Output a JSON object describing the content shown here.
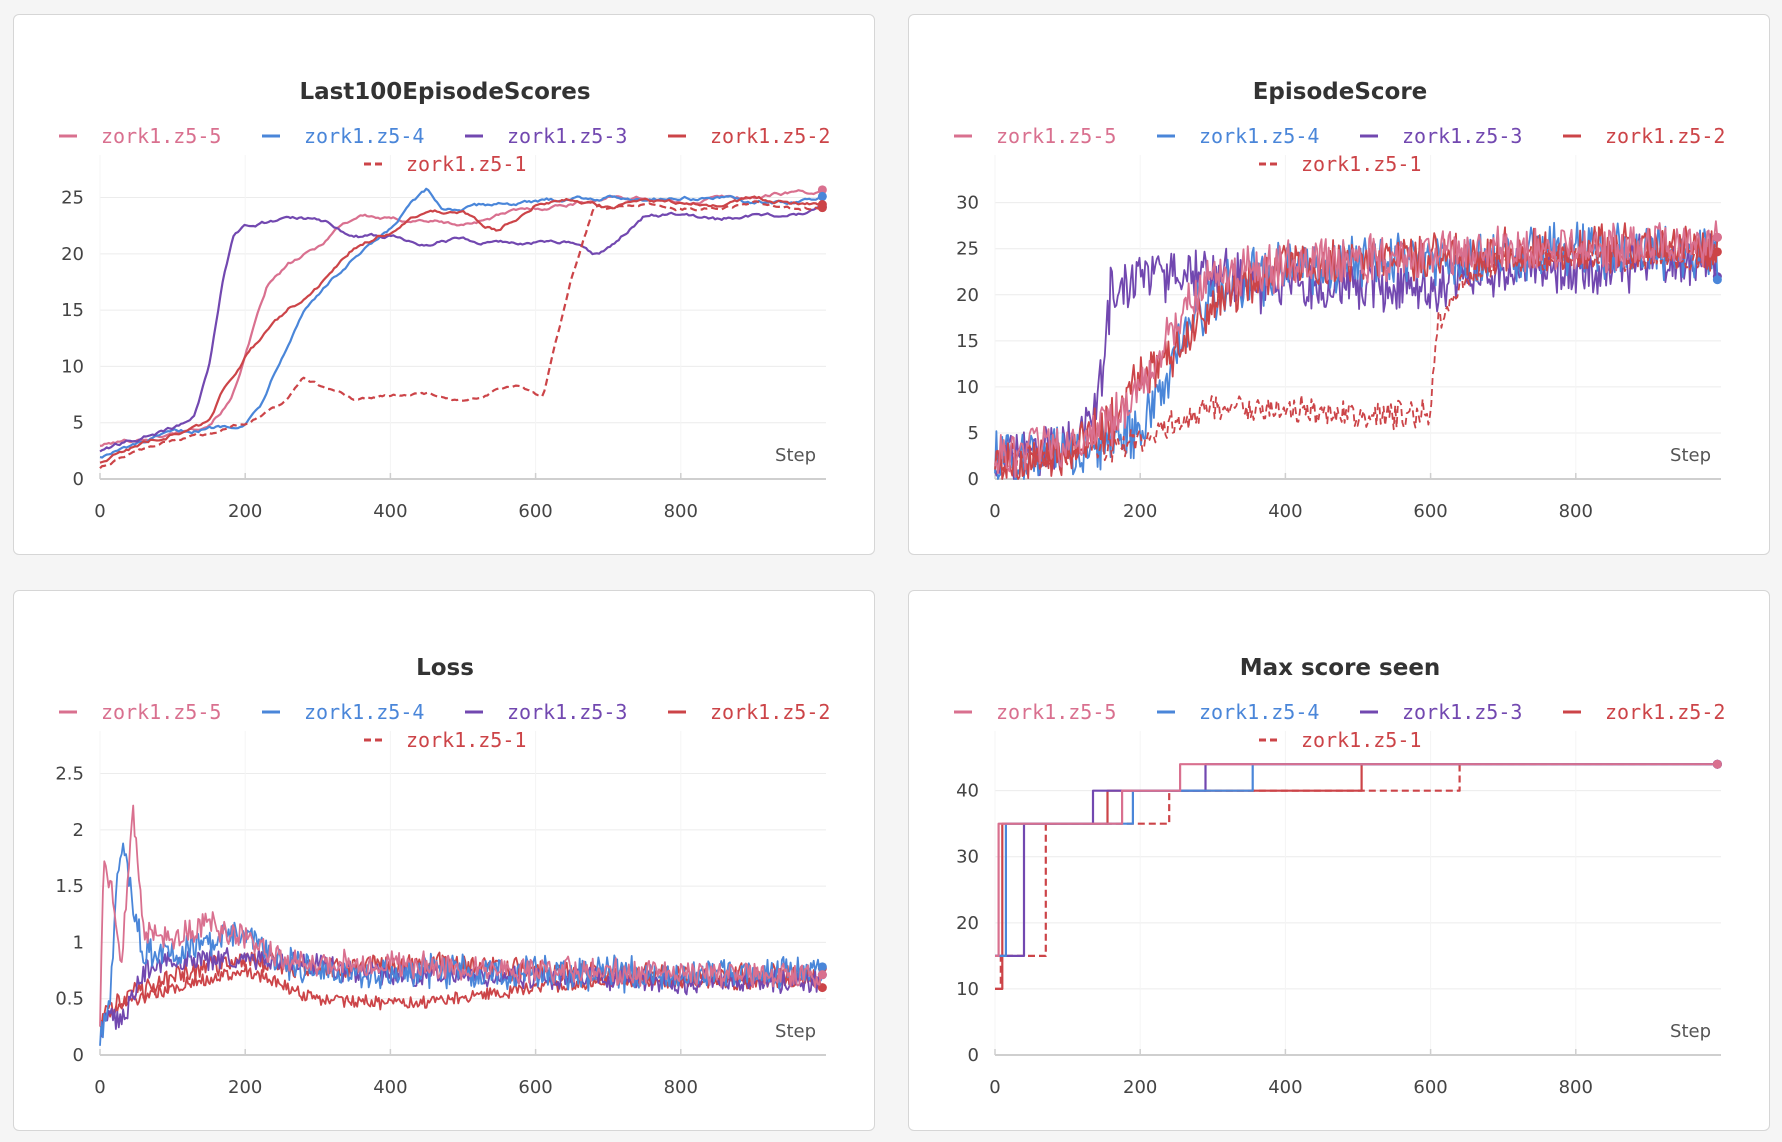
{
  "colors": {
    "zork1.z5-5": "#d9708f",
    "zork1.z5-4": "#4a86d9",
    "zork1.z5-3": "#7248b0",
    "zork1.z5-2": "#cc4448",
    "zork1.z5-1": "#cc4448"
  },
  "chart_data": [
    {
      "type": "line",
      "title": "Last100EpisodeScores",
      "xlabel": "Step",
      "ylabel": "",
      "xlim": [
        0,
        1000
      ],
      "ylim": [
        0,
        27
      ],
      "xticks": [
        0,
        200,
        400,
        600,
        800
      ],
      "yticks": [
        0,
        5,
        10,
        15,
        20,
        25
      ],
      "ytick_labels": [
        "0",
        "5",
        "10",
        "15",
        "20",
        "25"
      ],
      "legend": [
        "zork1.z5-5",
        "zork1.z5-4",
        "zork1.z5-3",
        "zork1.z5-2",
        "zork1.z5-1"
      ],
      "series": [
        {
          "name": "zork1.z5-5",
          "dashed": false,
          "noise": 0.25,
          "x": [
            0,
            50,
            100,
            150,
            180,
            200,
            230,
            260,
            300,
            330,
            360,
            400,
            450,
            500,
            550,
            600,
            650,
            700,
            750,
            800,
            850,
            900,
            950,
            1000
          ],
          "y": [
            3,
            3.5,
            4,
            5,
            7,
            11,
            17,
            19,
            20.5,
            22.5,
            23.5,
            23,
            23,
            22.5,
            23.5,
            24,
            24.5,
            25,
            25,
            24.5,
            25,
            25,
            25.5,
            25.5
          ]
        },
        {
          "name": "zork1.z5-4",
          "dashed": false,
          "noise": 0.25,
          "x": [
            0,
            50,
            100,
            150,
            200,
            220,
            250,
            280,
            300,
            350,
            400,
            430,
            450,
            470,
            500,
            550,
            600,
            650,
            700,
            750,
            800,
            850,
            900,
            950,
            1000
          ],
          "y": [
            2,
            3,
            4,
            4.5,
            5,
            6.5,
            11,
            15,
            16.5,
            19.5,
            22,
            24.5,
            25.5,
            24,
            24,
            24.5,
            24.5,
            25,
            25,
            25,
            25,
            25,
            24.5,
            24.5,
            25
          ]
        },
        {
          "name": "zork1.z5-3",
          "dashed": false,
          "noise": 0.25,
          "x": [
            0,
            50,
            100,
            130,
            150,
            170,
            185,
            200,
            250,
            290,
            320,
            350,
            400,
            450,
            500,
            550,
            600,
            650,
            680,
            700,
            750,
            800,
            850,
            900,
            950,
            1000
          ],
          "y": [
            2.5,
            3.5,
            4.5,
            5.5,
            10,
            18,
            22,
            22.5,
            23,
            23,
            22.5,
            21.5,
            21.5,
            21,
            21.5,
            21,
            21,
            21,
            20,
            20.5,
            23.5,
            23.5,
            23,
            23.5,
            23.5,
            24
          ]
        },
        {
          "name": "zork1.z5-2",
          "dashed": false,
          "noise": 0.25,
          "x": [
            0,
            50,
            100,
            150,
            170,
            200,
            230,
            260,
            300,
            350,
            400,
            450,
            500,
            550,
            600,
            650,
            700,
            750,
            800,
            850,
            900,
            950,
            1000
          ],
          "y": [
            1.5,
            3,
            4,
            5,
            8,
            11,
            13,
            15,
            17,
            20.5,
            22,
            24,
            23.5,
            22,
            24.5,
            25,
            24,
            24.5,
            24.5,
            24.5,
            25,
            24.5,
            24.5
          ]
        },
        {
          "name": "zork1.z5-1",
          "dashed": true,
          "noise": 0.2,
          "x": [
            0,
            50,
            100,
            150,
            200,
            250,
            280,
            300,
            350,
            400,
            450,
            500,
            550,
            580,
            600,
            610,
            650,
            680,
            700,
            750,
            800,
            850,
            900,
            950,
            1000
          ],
          "y": [
            1,
            2.5,
            3.5,
            4,
            5,
            6.5,
            9,
            8.5,
            7,
            7.5,
            7.5,
            7,
            8,
            8,
            7.5,
            7.5,
            18,
            24,
            24,
            24.5,
            24,
            24,
            24.5,
            24,
            24
          ]
        }
      ]
    },
    {
      "type": "line",
      "title": "EpisodeScore",
      "xlabel": "Step",
      "ylabel": "",
      "xlim": [
        0,
        1000
      ],
      "ylim": [
        0,
        33
      ],
      "xticks": [
        0,
        200,
        400,
        600,
        800
      ],
      "yticks": [
        0,
        5,
        10,
        15,
        20,
        25,
        30
      ],
      "ytick_labels": [
        "0",
        "5",
        "10",
        "15",
        "20",
        "25",
        "30"
      ],
      "legend": [
        "zork1.z5-5",
        "zork1.z5-4",
        "zork1.z5-3",
        "zork1.z5-2",
        "zork1.z5-1"
      ],
      "series": [
        {
          "name": "zork1.z5-3",
          "dashed": false,
          "noise": 3.5,
          "x": [
            0,
            100,
            140,
            160,
            200,
            250,
            300,
            400,
            600,
            800,
            1000
          ],
          "y": [
            2,
            4,
            8,
            20,
            22,
            22,
            22,
            21,
            21,
            23,
            24
          ]
        },
        {
          "name": "zork1.z5-4",
          "dashed": false,
          "noise": 3.5,
          "x": [
            0,
            100,
            200,
            230,
            260,
            300,
            400,
            600,
            800,
            1000
          ],
          "y": [
            2,
            3,
            5,
            10,
            16,
            20,
            23,
            24,
            25,
            24
          ]
        },
        {
          "name": "zork1.z5-2",
          "dashed": false,
          "noise": 3.0,
          "x": [
            0,
            100,
            160,
            200,
            260,
            300,
            400,
            600,
            800,
            1000
          ],
          "y": [
            2,
            3,
            6,
            11,
            15,
            19,
            23,
            24,
            25,
            25
          ]
        },
        {
          "name": "zork1.z5-1",
          "dashed": true,
          "noise": 1.8,
          "x": [
            0,
            100,
            200,
            250,
            300,
            400,
            500,
            600,
            610,
            650,
            700,
            800,
            1000
          ],
          "y": [
            2,
            3,
            4,
            6,
            8,
            7.5,
            7,
            7,
            17,
            22,
            24,
            24,
            24
          ]
        },
        {
          "name": "zork1.z5-5",
          "dashed": false,
          "noise": 3.0,
          "x": [
            0,
            100,
            180,
            230,
            260,
            300,
            400,
            600,
            800,
            1000
          ],
          "y": [
            2.5,
            4,
            7,
            14,
            19,
            22,
            23,
            24.5,
            25,
            26
          ]
        }
      ]
    },
    {
      "type": "line",
      "title": "Loss",
      "xlabel": "Step",
      "ylabel": "",
      "xlim": [
        0,
        1000
      ],
      "ylim": [
        0,
        2.7
      ],
      "xticks": [
        0,
        200,
        400,
        600,
        800
      ],
      "yticks": [
        0,
        0.5,
        1,
        1.5,
        2,
        2.5
      ],
      "ytick_labels": [
        "0",
        "0.5",
        "1",
        "1.5",
        "2",
        "2.5"
      ],
      "legend": [
        "zork1.z5-5",
        "zork1.z5-4",
        "zork1.z5-3",
        "zork1.z5-2",
        "zork1.z5-1"
      ],
      "series": [
        {
          "name": "zork1.z5-1",
          "dashed": false,
          "noise": 0.07,
          "x": [
            0,
            30,
            100,
            200,
            300,
            400,
            500,
            600,
            700,
            800,
            1000
          ],
          "y": [
            0.3,
            0.45,
            0.6,
            0.75,
            0.5,
            0.45,
            0.5,
            0.6,
            0.65,
            0.65,
            0.65
          ]
        },
        {
          "name": "zork1.z5-2",
          "dashed": false,
          "noise": 0.12,
          "x": [
            0,
            30,
            100,
            200,
            300,
            400,
            500,
            600,
            800,
            1000
          ],
          "y": [
            0.3,
            0.5,
            0.7,
            0.85,
            0.75,
            0.8,
            0.8,
            0.75,
            0.7,
            0.7
          ]
        },
        {
          "name": "zork1.z5-3",
          "dashed": false,
          "noise": 0.12,
          "x": [
            0,
            10,
            30,
            60,
            100,
            200,
            300,
            400,
            600,
            800,
            1000
          ],
          "y": [
            0.2,
            0.4,
            0.3,
            0.75,
            0.85,
            0.85,
            0.8,
            0.7,
            0.7,
            0.65,
            0.65
          ]
        },
        {
          "name": "zork1.z5-4",
          "dashed": false,
          "noise": 0.18,
          "x": [
            0,
            15,
            25,
            35,
            45,
            60,
            100,
            150,
            200,
            250,
            300,
            400,
            600,
            800,
            1000
          ],
          "y": [
            0.15,
            0.6,
            1.7,
            1.9,
            1.4,
            0.9,
            0.9,
            1.0,
            1.1,
            0.8,
            0.75,
            0.75,
            0.72,
            0.72,
            0.75
          ]
        },
        {
          "name": "zork1.z5-5",
          "dashed": false,
          "noise": 0.14,
          "x": [
            0,
            5,
            15,
            30,
            45,
            60,
            100,
            150,
            200,
            250,
            300,
            400,
            600,
            800,
            1000
          ],
          "y": [
            0.3,
            1.7,
            1.5,
            0.8,
            2.2,
            1.1,
            1.05,
            1.15,
            1.05,
            0.85,
            0.8,
            0.8,
            0.75,
            0.72,
            0.72
          ]
        }
      ]
    },
    {
      "type": "line",
      "title": "Max score seen",
      "xlabel": "Step",
      "ylabel": "",
      "xlim": [
        0,
        1000
      ],
      "ylim": [
        0,
        46
      ],
      "xticks": [
        0,
        200,
        400,
        600,
        800
      ],
      "yticks": [
        0,
        10,
        20,
        30,
        40
      ],
      "ytick_labels": [
        "0",
        "10",
        "20",
        "30",
        "40"
      ],
      "legend": [
        "zork1.z5-5",
        "zork1.z5-4",
        "zork1.z5-3",
        "zork1.z5-2",
        "zork1.z5-1"
      ],
      "series": [
        {
          "name": "zork1.z5-1",
          "dashed": true,
          "step": true,
          "x": [
            0,
            8,
            70,
            240,
            640,
            1000
          ],
          "y": [
            10,
            15,
            35,
            40,
            44,
            44
          ]
        },
        {
          "name": "zork1.z5-2",
          "dashed": false,
          "step": true,
          "x": [
            0,
            10,
            155,
            505,
            1000
          ],
          "y": [
            10,
            35,
            40,
            44,
            44
          ]
        },
        {
          "name": "zork1.z5-3",
          "dashed": false,
          "step": true,
          "x": [
            0,
            40,
            135,
            290,
            1000
          ],
          "y": [
            15,
            35,
            40,
            44,
            44
          ]
        },
        {
          "name": "zork1.z5-4",
          "dashed": false,
          "step": true,
          "x": [
            0,
            15,
            190,
            355,
            1000
          ],
          "y": [
            15,
            35,
            40,
            44,
            44
          ]
        },
        {
          "name": "zork1.z5-5",
          "dashed": false,
          "step": true,
          "x": [
            0,
            5,
            175,
            255,
            1000
          ],
          "y": [
            15,
            35,
            40,
            44,
            44
          ]
        }
      ]
    }
  ]
}
